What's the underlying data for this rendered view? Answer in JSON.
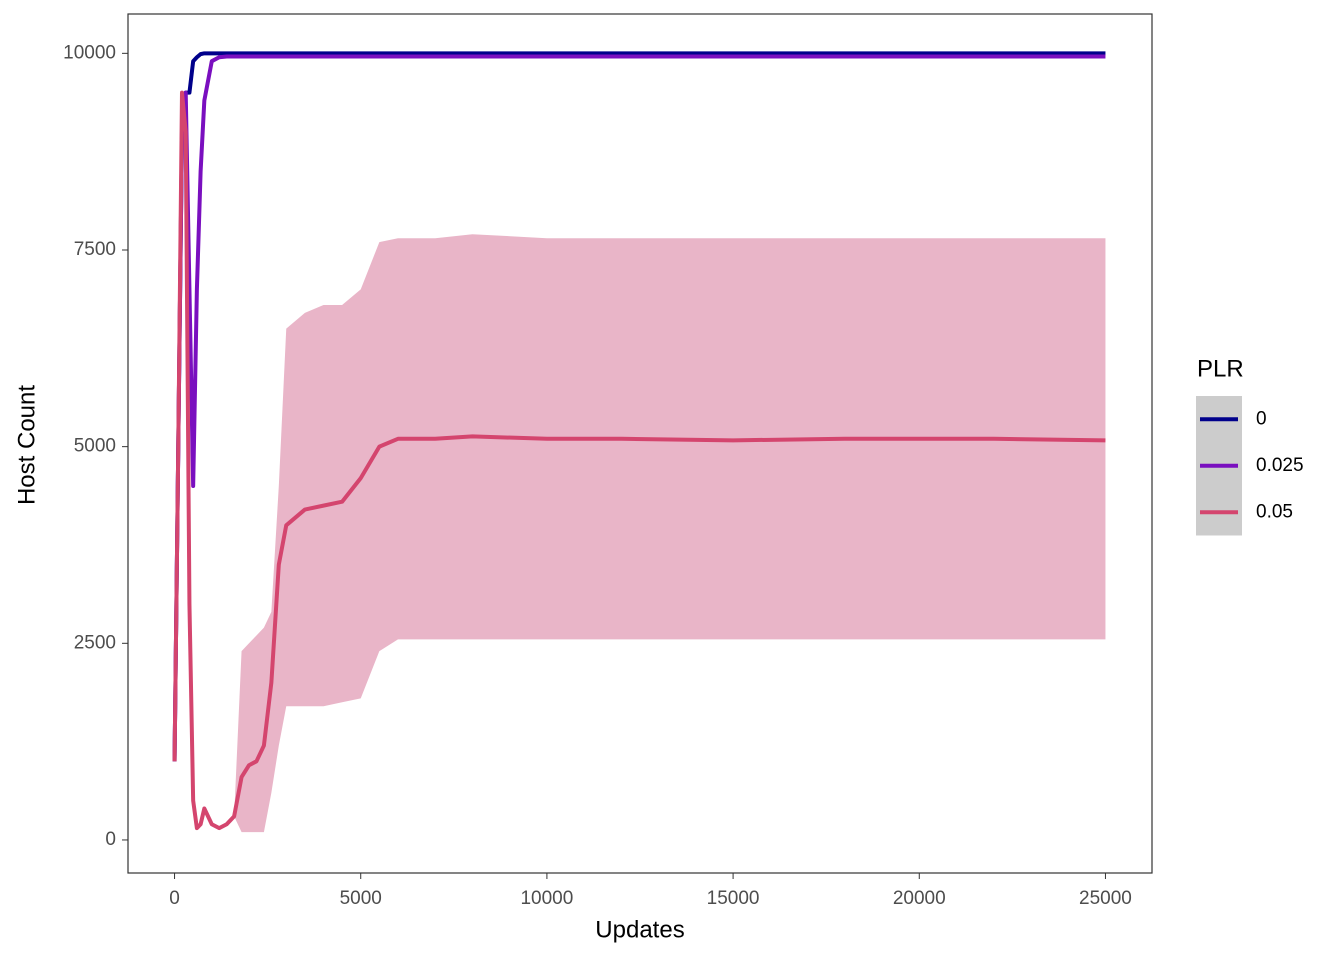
{
  "chart_data": {
    "type": "line",
    "x_label": "Updates",
    "y_label": "Host Count",
    "legend_title": "PLR",
    "x": [
      0,
      100,
      200,
      300,
      400,
      500,
      600,
      700,
      800,
      1000,
      1200,
      1400,
      1600,
      1800,
      2000,
      2200,
      2400,
      2600,
      2800,
      3000,
      3500,
      4000,
      4500,
      5000,
      5500,
      6000,
      7000,
      8000,
      10000,
      12000,
      15000,
      18000,
      20000,
      22000,
      25000
    ],
    "series": [
      {
        "name": "0",
        "color": "#00008b",
        "values": [
          1000,
          5000,
          9000,
          9500,
          9500,
          9900,
          9950,
          9990,
          10000,
          10000,
          10000,
          10000,
          10000,
          10000,
          10000,
          10000,
          10000,
          10000,
          10000,
          10000,
          10000,
          10000,
          10000,
          10000,
          10000,
          10000,
          10000,
          10000,
          10000,
          10000,
          10000,
          10000,
          10000,
          10000,
          10000
        ]
      },
      {
        "name": "0.025",
        "color": "#7a0fbf",
        "values": [
          1000,
          5000,
          9000,
          9500,
          7000,
          4500,
          7000,
          8500,
          9400,
          9900,
          9950,
          9960,
          9960,
          9960,
          9960,
          9960,
          9960,
          9960,
          9960,
          9960,
          9960,
          9960,
          9960,
          9960,
          9960,
          9960,
          9960,
          9960,
          9960,
          9960,
          9960,
          9960,
          9960,
          9960,
          9960
        ]
      },
      {
        "name": "0.05",
        "color": "#d4456e",
        "band_color": "#e9b5c8",
        "values": [
          1000,
          5000,
          9500,
          9000,
          3000,
          500,
          150,
          200,
          400,
          200,
          150,
          200,
          300,
          800,
          950,
          1000,
          1200,
          2000,
          3500,
          4000,
          4200,
          4250,
          4300,
          4600,
          5000,
          5100,
          5100,
          5130,
          5100,
          5100,
          5080,
          5100,
          5100,
          5100,
          5080
        ],
        "lower": [
          1000,
          5000,
          9500,
          9000,
          3000,
          500,
          150,
          200,
          400,
          200,
          150,
          200,
          300,
          100,
          100,
          100,
          100,
          600,
          1200,
          1700,
          1700,
          1700,
          1750,
          1800,
          2400,
          2550,
          2550,
          2550,
          2550,
          2550,
          2550,
          2550,
          2550,
          2550,
          2550
        ],
        "upper": [
          1000,
          5000,
          9500,
          9000,
          3000,
          500,
          150,
          200,
          400,
          200,
          150,
          200,
          300,
          2400,
          2500,
          2600,
          2700,
          2900,
          4500,
          6500,
          6700,
          6800,
          6800,
          7000,
          7600,
          7650,
          7650,
          7700,
          7650,
          7650,
          7650,
          7650,
          7650,
          7650,
          7650
        ]
      }
    ],
    "xlim": [
      -1250,
      26250
    ],
    "ylim": [
      -420,
      10500
    ],
    "xticks": [
      0,
      5000,
      10000,
      15000,
      20000,
      25000
    ],
    "yticks": [
      0,
      2500,
      5000,
      7500,
      10000
    ],
    "grid": false,
    "legend_position": "right"
  }
}
